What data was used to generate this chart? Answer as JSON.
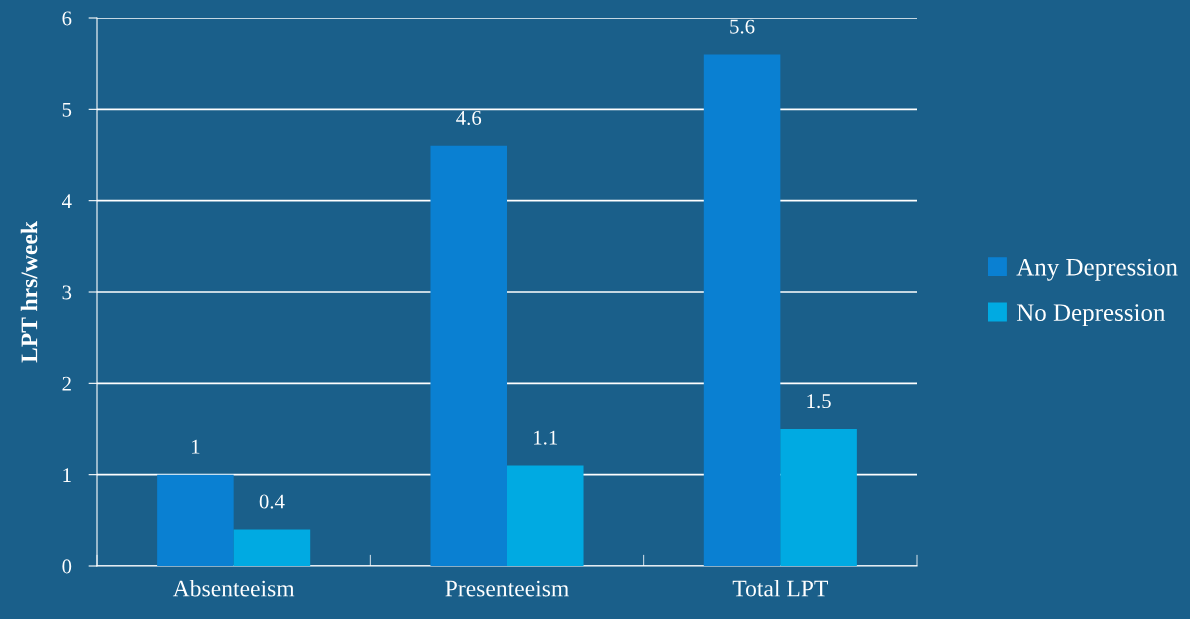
{
  "chart_data": {
    "type": "bar",
    "ylabel": "LPT hrs/week",
    "categories": [
      "Absenteeism",
      "Presenteeism",
      "Total LPT"
    ],
    "series": [
      {
        "name": "Any Depression",
        "color": "#0a80d2",
        "values": [
          1,
          4.6,
          5.6
        ]
      },
      {
        "name": "No Depression",
        "color": "#00aae2",
        "values": [
          0.4,
          1.1,
          1.5
        ]
      }
    ],
    "ylim": [
      0,
      6
    ],
    "yticks": [
      0,
      1,
      2,
      3,
      4,
      5,
      6
    ],
    "grid": "y",
    "legend": "right",
    "data_labels": true
  }
}
